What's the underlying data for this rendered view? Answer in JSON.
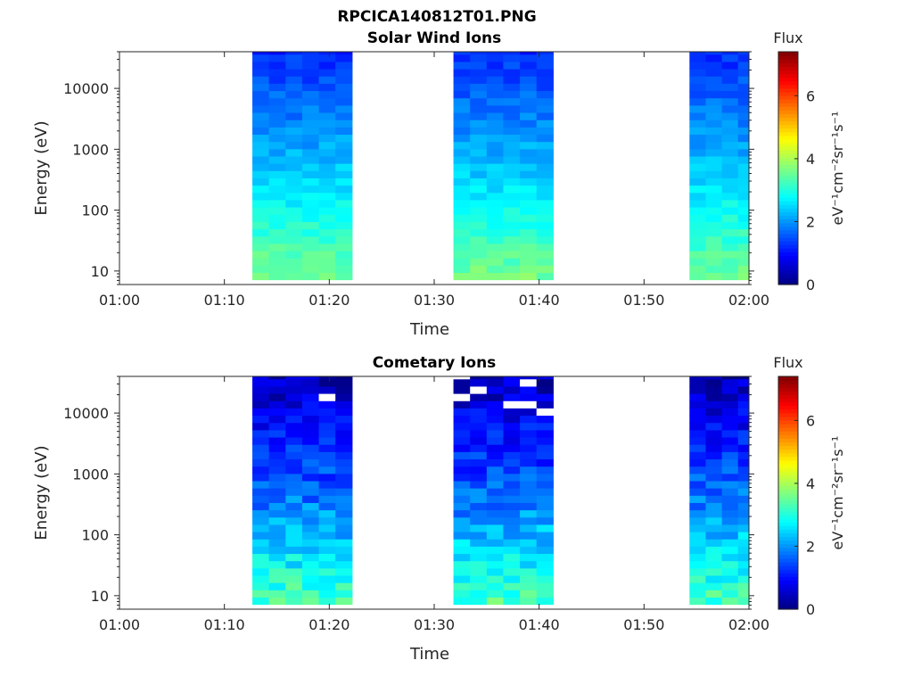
{
  "figure_title": "RPCICA140812T01.PNG",
  "chart_data": [
    {
      "type": "heatmap",
      "title": "Solar Wind Ions",
      "xlabel": "Time",
      "ylabel": "Energy (eV)",
      "y_scale": "log",
      "ylim": [
        6,
        40000
      ],
      "xlim": [
        "01:00",
        "02:00"
      ],
      "x_ticks": [
        "01:00",
        "01:10",
        "01:20",
        "01:30",
        "01:40",
        "01:50",
        "02:00"
      ],
      "y_ticks": [
        "10",
        "100",
        "1000",
        "10000"
      ],
      "colorbar": {
        "label": "Flux",
        "units": "eV⁻¹cm⁻²sr⁻¹s⁻¹",
        "range": [
          0,
          7.4
        ],
        "ticks": [
          "0",
          "2",
          "4",
          "6"
        ],
        "colormap": "jet"
      },
      "data_intervals": [
        {
          "start": "01:12:40",
          "end": "01:22:10",
          "low_energy_flux": 3.6,
          "mid_energy_flux": 2.3,
          "high_energy_flux": 1.2
        },
        {
          "start": "01:31:50",
          "end": "01:41:20",
          "low_energy_flux": 3.6,
          "mid_energy_flux": 2.3,
          "high_energy_flux": 1.2
        },
        {
          "start": "01:54:20",
          "end": "02:00:30",
          "low_energy_flux": 3.6,
          "mid_energy_flux": 2.3,
          "high_energy_flux": 1.2
        }
      ]
    },
    {
      "type": "heatmap",
      "title": "Cometary Ions",
      "xlabel": "Time",
      "ylabel": "Energy (eV)",
      "y_scale": "log",
      "ylim": [
        6,
        40000
      ],
      "xlim": [
        "01:00",
        "02:00"
      ],
      "x_ticks": [
        "01:00",
        "01:10",
        "01:20",
        "01:30",
        "01:40",
        "01:50",
        "02:00"
      ],
      "y_ticks": [
        "10",
        "100",
        "1000",
        "10000"
      ],
      "colorbar": {
        "label": "Flux",
        "units": "eV⁻¹cm⁻²sr⁻¹s⁻¹",
        "range": [
          0,
          7.4
        ],
        "ticks": [
          "0",
          "2",
          "4",
          "6"
        ],
        "colormap": "jet"
      },
      "data_intervals": [
        {
          "start": "01:12:40",
          "end": "01:22:10",
          "low_energy_flux": 3.3,
          "mid_energy_flux": 1.6,
          "high_energy_flux": 0.4
        },
        {
          "start": "01:31:50",
          "end": "01:41:20",
          "low_energy_flux": 3.3,
          "mid_energy_flux": 1.6,
          "high_energy_flux": 0.4
        },
        {
          "start": "01:54:20",
          "end": "02:00:30",
          "low_energy_flux": 3.3,
          "mid_energy_flux": 1.6,
          "high_energy_flux": 0.4
        }
      ]
    }
  ]
}
